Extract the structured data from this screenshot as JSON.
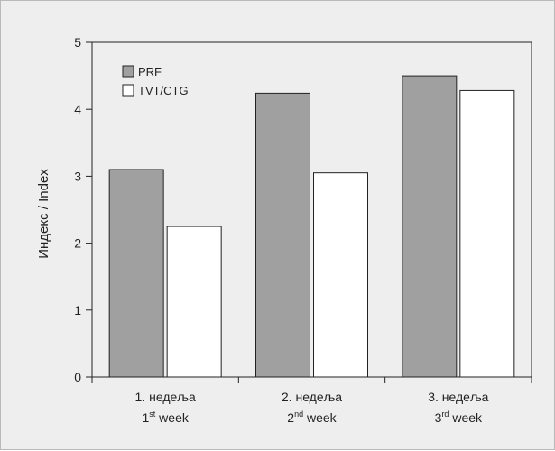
{
  "chart_data": {
    "type": "bar",
    "title": "",
    "xlabel": "",
    "ylabel": "Индекс / Index",
    "ylim": [
      0,
      5
    ],
    "yticks": [
      0,
      1,
      2,
      3,
      4,
      5
    ],
    "grid": false,
    "legend_position": "top-left",
    "categories": [
      {
        "line1": "1. недеља",
        "line2_num": "1",
        "line2_sup": "st",
        "line2_rest": " week"
      },
      {
        "line1": "2. недеља",
        "line2_num": "2",
        "line2_sup": "nd",
        "line2_rest": " week"
      },
      {
        "line1": "3. недеља",
        "line2_num": "3",
        "line2_sup": "rd",
        "line2_rest": " week"
      }
    ],
    "series": [
      {
        "name": "PRF",
        "color": "#a0a0a0",
        "values": [
          3.1,
          4.24,
          4.5
        ]
      },
      {
        "name": "TVT/CTG",
        "color": "#ffffff",
        "values": [
          2.25,
          3.05,
          4.28
        ]
      }
    ]
  }
}
